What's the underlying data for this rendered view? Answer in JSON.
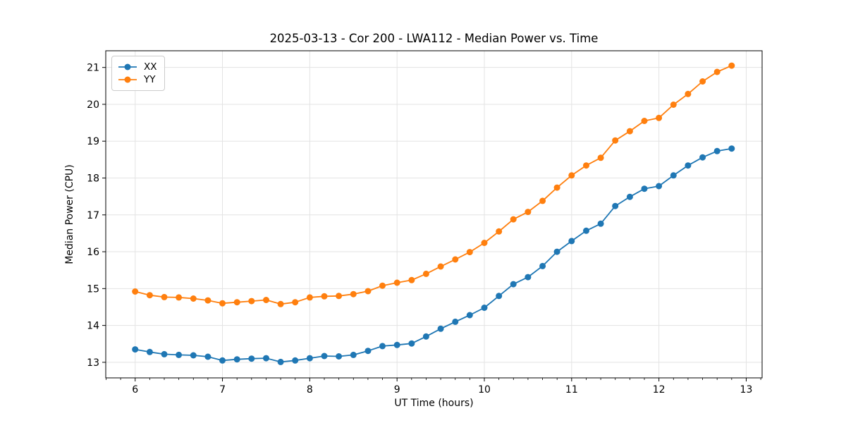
{
  "chart_data": {
    "type": "line",
    "title": "2025-03-13 - Cor 200 - LWA112 - Median Power vs. Time",
    "xlabel": "UT Time (hours)",
    "ylabel": "Median Power (CPU)",
    "xlim": [
      5.663,
      13.182
    ],
    "ylim": [
      12.577,
      21.453
    ],
    "x_ticks": [
      6,
      7,
      8,
      9,
      10,
      11,
      12,
      13
    ],
    "y_ticks": [
      13,
      14,
      15,
      16,
      17,
      18,
      19,
      20,
      21
    ],
    "x_minor_step_hours": 0.1667,
    "grid": true,
    "legend_position": "upper-left",
    "background_color": "#ffffff",
    "grid_color": "#e3e3e3",
    "spine_color": "#000000",
    "x": [
      6.0,
      6.167,
      6.333,
      6.5,
      6.667,
      6.833,
      7.0,
      7.167,
      7.333,
      7.5,
      7.667,
      7.833,
      8.0,
      8.167,
      8.333,
      8.5,
      8.667,
      8.833,
      9.0,
      9.167,
      9.333,
      9.5,
      9.667,
      9.833,
      10.0,
      10.167,
      10.333,
      10.5,
      10.667,
      10.833,
      11.0,
      11.167,
      11.333,
      11.5,
      11.667,
      11.833,
      12.0,
      12.167,
      12.333,
      12.5,
      12.667,
      12.833
    ],
    "series": [
      {
        "name": "XX",
        "color": "#1f77b4",
        "values": [
          13.35,
          13.28,
          13.22,
          13.2,
          13.19,
          13.15,
          13.05,
          13.08,
          13.1,
          13.11,
          13.01,
          13.05,
          13.11,
          13.17,
          13.16,
          13.2,
          13.31,
          13.44,
          13.47,
          13.51,
          13.7,
          13.91,
          14.1,
          14.28,
          14.48,
          14.8,
          15.12,
          15.31,
          15.61,
          16.0,
          16.29,
          16.57,
          16.76,
          17.24,
          17.49,
          17.71,
          17.78,
          18.07,
          18.34,
          18.56,
          18.73,
          18.8
        ]
      },
      {
        "name": "YY",
        "color": "#ff7f0e",
        "values": [
          14.92,
          14.82,
          14.77,
          14.76,
          14.73,
          14.68,
          14.6,
          14.63,
          14.66,
          14.69,
          14.58,
          14.63,
          14.76,
          14.79,
          14.8,
          14.85,
          14.93,
          15.08,
          15.16,
          15.23,
          15.4,
          15.6,
          15.79,
          15.99,
          16.24,
          16.55,
          16.88,
          17.08,
          17.38,
          17.74,
          18.07,
          18.34,
          18.55,
          19.02,
          19.27,
          19.55,
          19.63,
          19.99,
          20.28,
          20.62,
          20.88,
          21.05
        ]
      }
    ]
  }
}
